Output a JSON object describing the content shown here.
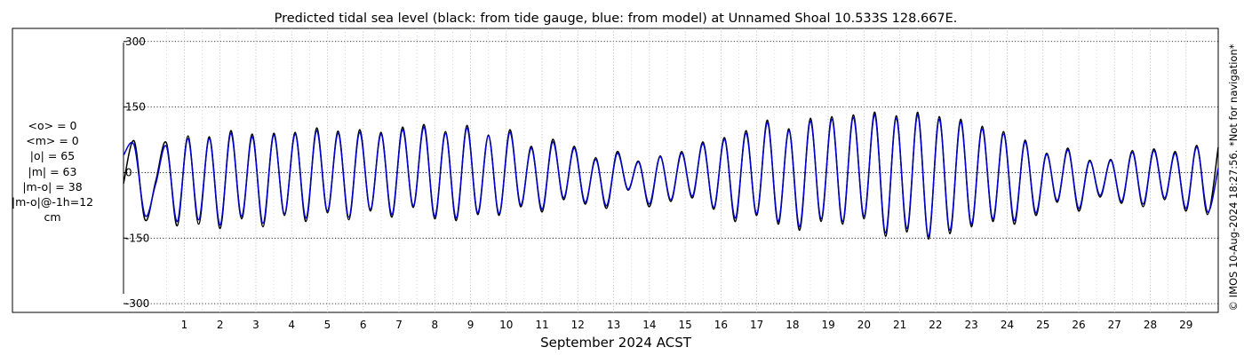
{
  "chart_data": {
    "type": "line",
    "title": "Predicted tidal sea level (black: from tide gauge, blue: from model) at Unnamed Shoal 10.533S 128.667E.",
    "xlabel": "September 2024 ACST",
    "ylabel": "",
    "xlim": [
      -0.7,
      29.9
    ],
    "ylim": [
      -320,
      330
    ],
    "yticks": [
      -300,
      -150,
      0,
      150,
      300
    ],
    "ytick_labels": [
      "-300",
      "-150",
      "0",
      "150",
      "300"
    ],
    "xticks": [
      1,
      2,
      3,
      4,
      5,
      6,
      7,
      8,
      9,
      10,
      11,
      12,
      13,
      14,
      15,
      16,
      17,
      18,
      19,
      20,
      21,
      22,
      23,
      24,
      25,
      26,
      27,
      28,
      29
    ],
    "xtick_labels": [
      "1",
      "2",
      "3",
      "4",
      "5",
      "6",
      "7",
      "8",
      "9",
      "10",
      "11",
      "12",
      "13",
      "14",
      "15",
      "16",
      "17",
      "18",
      "19",
      "20",
      "21",
      "22",
      "23",
      "24",
      "25",
      "26",
      "27",
      "28",
      "29"
    ],
    "grid": true,
    "units": "cm",
    "colors": {
      "observed": "#000000",
      "model": "#0000cc"
    },
    "series": [
      {
        "name": "tide gauge",
        "color": "#000000",
        "x": [
          -0.7,
          -0.4,
          -0.1,
          0.2,
          0.5,
          0.8,
          1.1,
          1.4,
          1.7,
          2.0,
          2.3,
          2.6,
          2.9,
          3.2,
          3.5,
          3.8,
          4.1,
          4.4,
          4.7,
          5.0,
          5.3,
          5.6,
          5.9,
          6.2,
          6.5,
          6.8,
          7.1,
          7.4,
          7.7,
          8.0,
          8.3,
          8.6,
          8.9,
          9.2,
          9.5,
          9.8,
          10.1,
          10.4,
          10.7,
          11.0,
          11.3,
          11.6,
          11.9,
          12.2,
          12.5,
          12.8,
          13.1,
          13.4,
          13.7,
          14.0,
          14.3,
          14.6,
          14.9,
          15.2,
          15.5,
          15.8,
          16.1,
          16.4,
          16.7,
          17.0,
          17.3,
          17.6,
          17.9,
          18.2,
          18.5,
          18.8,
          19.1,
          19.4,
          19.7,
          20.0,
          20.3,
          20.6,
          20.9,
          21.2,
          21.5,
          21.8,
          22.1,
          22.4,
          22.7,
          23.0,
          23.3,
          23.6,
          23.9,
          24.2,
          24.5,
          24.8,
          25.1,
          25.4,
          25.7,
          26.0,
          26.3,
          26.6,
          26.9,
          27.2,
          27.5,
          27.8,
          28.1,
          28.4,
          28.7,
          29.0,
          29.3,
          29.6,
          29.9
        ],
        "values": [
          -25,
          72,
          -108,
          -20,
          68,
          -122,
          84,
          -118,
          82,
          -128,
          96,
          -106,
          88,
          -124,
          90,
          -98,
          92,
          -112,
          102,
          -92,
          95,
          -108,
          98,
          -88,
          92,
          -102,
          104,
          -80,
          110,
          -106,
          94,
          -110,
          108,
          -96,
          86,
          -98,
          98,
          -78,
          60,
          -90,
          76,
          -62,
          60,
          -72,
          34,
          -82,
          48,
          -40,
          26,
          -78,
          38,
          -66,
          48,
          -58,
          70,
          -84,
          80,
          -112,
          96,
          -98,
          120,
          -118,
          100,
          -132,
          124,
          -112,
          128,
          -118,
          132,
          -106,
          138,
          -146,
          130,
          -136,
          138,
          -152,
          128,
          -140,
          122,
          -124,
          106,
          -112,
          94,
          -118,
          74,
          -98,
          44,
          -68,
          56,
          -88,
          28,
          -56,
          30,
          -70,
          50,
          -78,
          54,
          -62,
          48,
          -88,
          62,
          -96,
          58
        ]
      },
      {
        "name": "model",
        "color": "#0000cc",
        "x": [
          -0.7,
          -0.4,
          -0.1,
          0.2,
          0.5,
          0.8,
          1.1,
          1.4,
          1.7,
          2.0,
          2.3,
          2.6,
          2.9,
          3.2,
          3.5,
          3.8,
          4.1,
          4.4,
          4.7,
          5.0,
          5.3,
          5.6,
          5.9,
          6.2,
          6.5,
          6.8,
          7.1,
          7.4,
          7.7,
          8.0,
          8.3,
          8.6,
          8.9,
          9.2,
          9.5,
          9.8,
          10.1,
          10.4,
          10.7,
          11.0,
          11.3,
          11.6,
          11.9,
          12.2,
          12.5,
          12.8,
          13.1,
          13.4,
          13.7,
          14.0,
          14.3,
          14.6,
          14.9,
          15.2,
          15.5,
          15.8,
          16.1,
          16.4,
          16.7,
          17.0,
          17.3,
          17.6,
          17.9,
          18.2,
          18.5,
          18.8,
          19.1,
          19.4,
          19.7,
          20.0,
          20.3,
          20.6,
          20.9,
          21.2,
          21.5,
          21.8,
          22.1,
          22.4,
          22.7,
          23.0,
          23.3,
          23.6,
          23.9,
          24.2,
          24.5,
          24.8,
          25.1,
          25.4,
          25.7,
          26.0,
          26.3,
          26.6,
          26.9,
          27.2,
          27.5,
          27.8,
          28.1,
          28.4,
          28.7,
          29.0,
          29.3,
          29.6,
          29.9
        ],
        "values": [
          40,
          62,
          -98,
          -26,
          60,
          -112,
          78,
          -108,
          78,
          -120,
          90,
          -100,
          82,
          -116,
          86,
          -94,
          88,
          -104,
          96,
          -88,
          90,
          -102,
          92,
          -84,
          88,
          -96,
          98,
          -76,
          104,
          -100,
          90,
          -104,
          102,
          -92,
          84,
          -94,
          92,
          -74,
          56,
          -84,
          70,
          -58,
          56,
          -68,
          30,
          -76,
          44,
          -38,
          24,
          -72,
          36,
          -62,
          44,
          -54,
          66,
          -80,
          76,
          -104,
          90,
          -94,
          114,
          -112,
          96,
          -124,
          118,
          -106,
          122,
          -112,
          126,
          -100,
          132,
          -138,
          124,
          -128,
          132,
          -146,
          122,
          -132,
          116,
          -118,
          100,
          -106,
          88,
          -110,
          70,
          -92,
          42,
          -64,
          52,
          -82,
          26,
          -52,
          28,
          -66,
          46,
          -72,
          50,
          -58,
          44,
          -82,
          58,
          -90,
          10
        ]
      }
    ]
  },
  "stats": {
    "lines": [
      "<o> = 0",
      "<m> = 0",
      "|o| = 65",
      "|m| = 63",
      "|m-o| = 38",
      "|m-o|@-1h=12",
      "cm"
    ]
  },
  "credit": "© IMOS 10-Aug-2024 18:27:56. *Not for navigation*"
}
